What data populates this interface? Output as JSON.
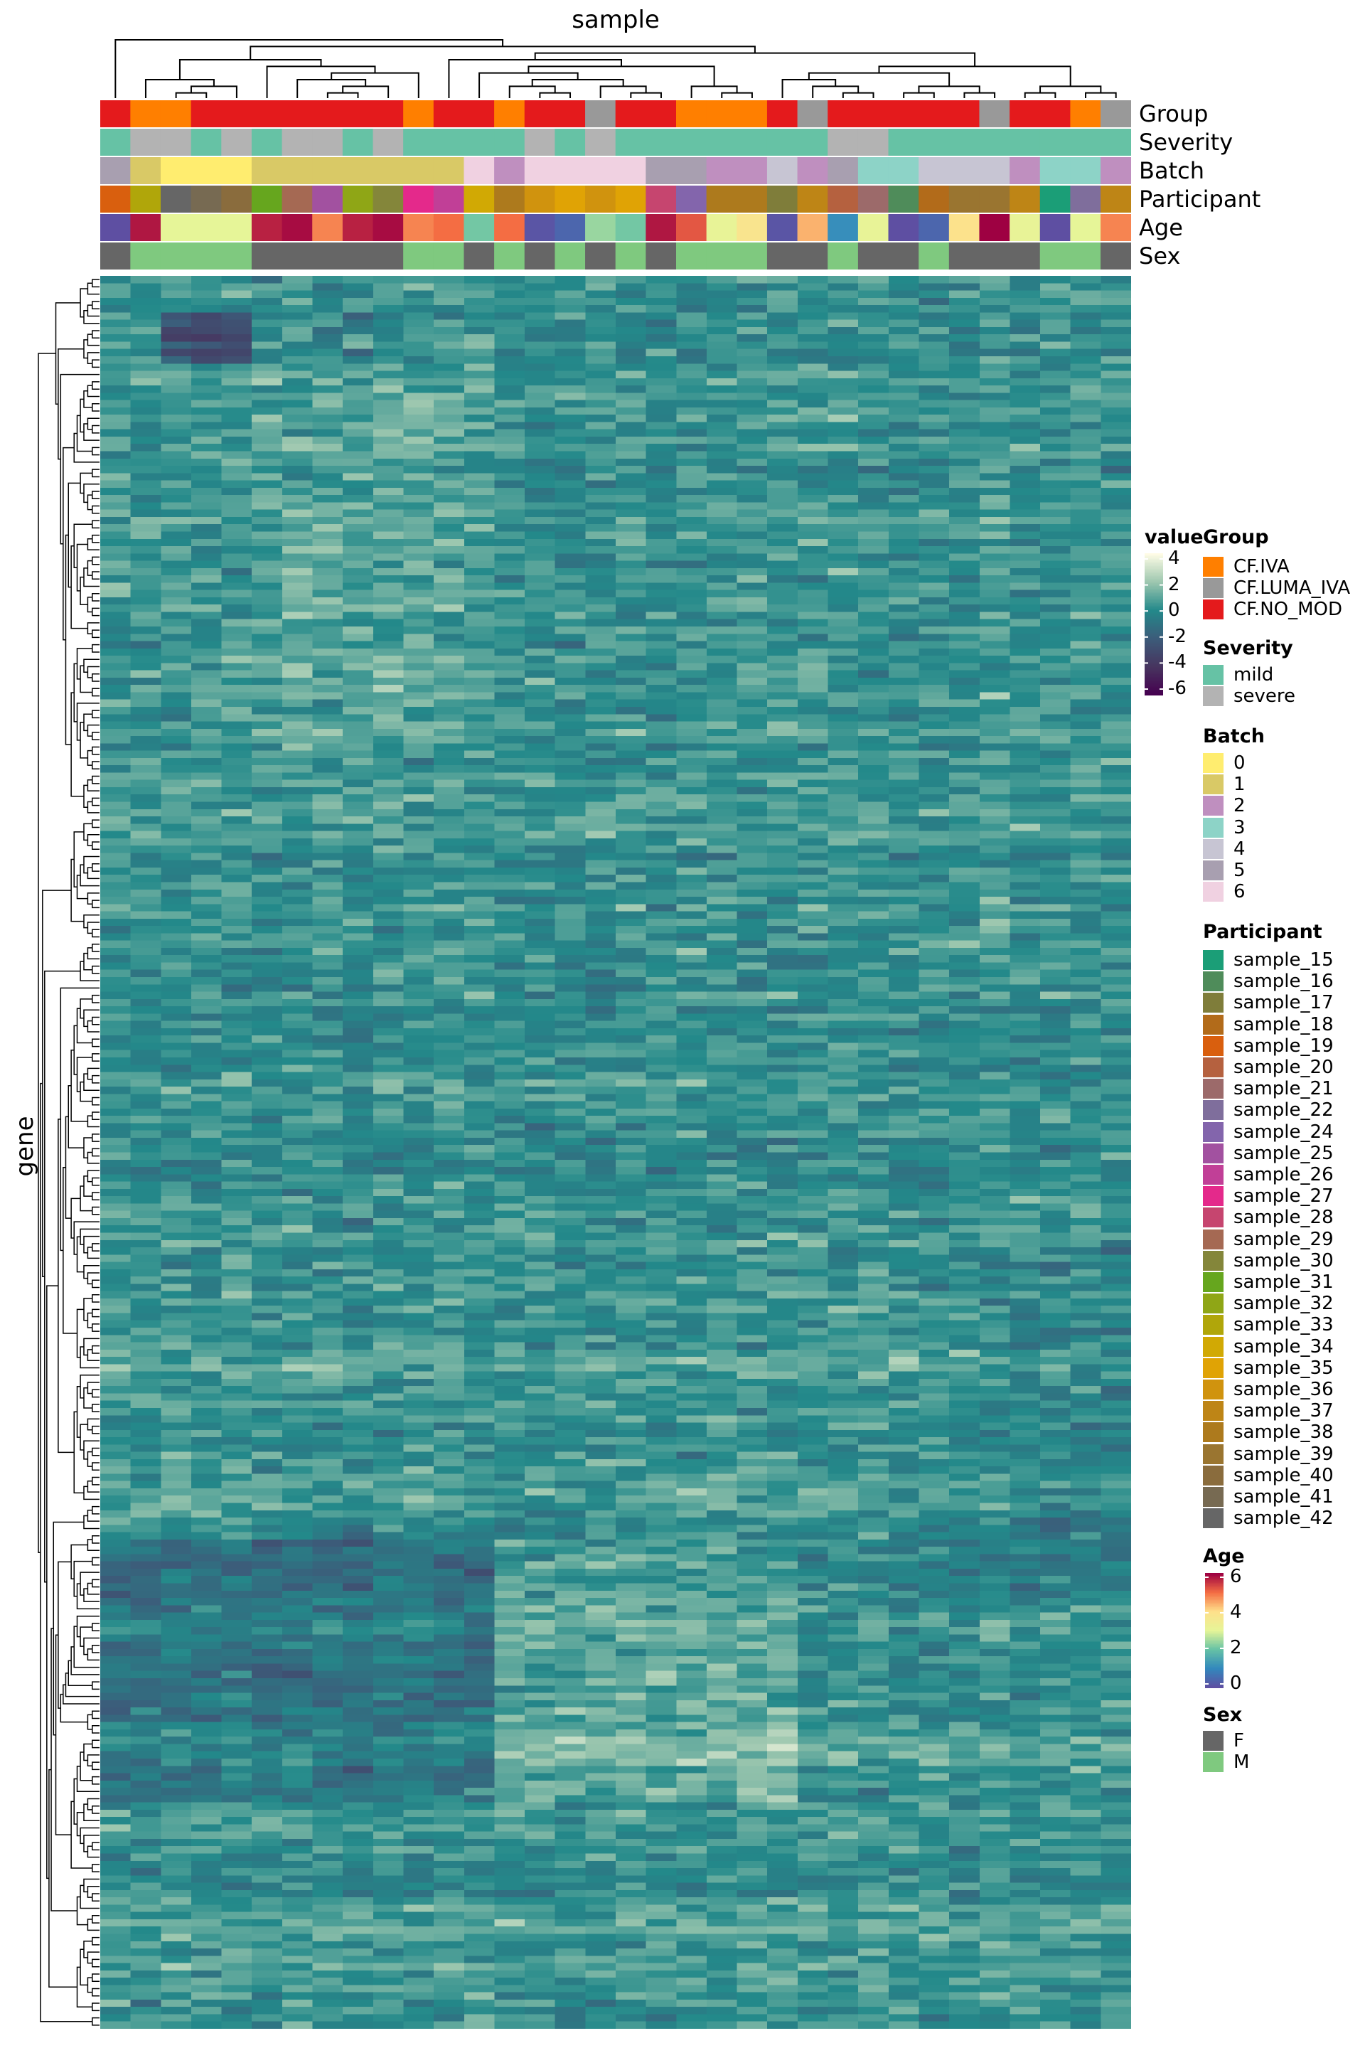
{
  "chart_data": {
    "type": "heatmap",
    "title": "sample",
    "ylabel": "gene",
    "value_scale": {
      "title": "value",
      "range": [
        -6,
        4
      ],
      "ticks": [
        "4",
        "2",
        "0",
        "-2",
        "-4",
        "-6"
      ],
      "colors": [
        "#45004f",
        "#47355f",
        "#3c5c7a",
        "#23898a",
        "#9dc7af",
        "#fffce6"
      ]
    },
    "annotation_rows": [
      "Group",
      "Severity",
      "Batch",
      "Participant",
      "Age",
      "Sex"
    ],
    "columns": {
      "Group": [
        "CF.NO_MOD",
        "CF.IVA",
        "CF.IVA",
        "CF.NO_MOD",
        "CF.NO_MOD",
        "CF.NO_MOD",
        "CF.NO_MOD",
        "CF.NO_MOD",
        "CF.NO_MOD",
        "CF.NO_MOD",
        "CF.IVA",
        "CF.NO_MOD",
        "CF.NO_MOD",
        "CF.IVA",
        "CF.NO_MOD",
        "CF.NO_MOD",
        "CF.LUMA_IVA",
        "CF.NO_MOD",
        "CF.NO_MOD",
        "CF.IVA",
        "CF.IVA",
        "CF.IVA",
        "CF.NO_MOD",
        "CF.LUMA_IVA",
        "CF.NO_MOD",
        "CF.NO_MOD",
        "CF.NO_MOD",
        "CF.NO_MOD",
        "CF.NO_MOD",
        "CF.LUMA_IVA",
        "CF.NO_MOD",
        "CF.NO_MOD",
        "CF.IVA",
        "CF.LUMA_IVA"
      ],
      "Severity": [
        "mild",
        "severe",
        "severe",
        "mild",
        "severe",
        "mild",
        "severe",
        "severe",
        "mild",
        "severe",
        "mild",
        "mild",
        "mild",
        "mild",
        "severe",
        "mild",
        "severe",
        "mild",
        "mild",
        "mild",
        "mild",
        "mild",
        "mild",
        "mild",
        "severe",
        "severe",
        "mild",
        "mild",
        "mild",
        "mild",
        "mild",
        "mild",
        "mild",
        "mild"
      ],
      "Batch": [
        "5",
        "1",
        "0",
        "0",
        "0",
        "1",
        "1",
        "1",
        "1",
        "1",
        "1",
        "1",
        "6",
        "2",
        "6",
        "6",
        "6",
        "6",
        "5",
        "5",
        "2",
        "2",
        "4",
        "2",
        "5",
        "3",
        "3",
        "4",
        "4",
        "4",
        "2",
        "3",
        "3",
        "2"
      ],
      "Participant": [
        "sample_19",
        "sample_33",
        "sample_42",
        "sample_41",
        "sample_40",
        "sample_31",
        "sample_29",
        "sample_25",
        "sample_32",
        "sample_30",
        "sample_27",
        "sample_26",
        "sample_34",
        "sample_38",
        "sample_36",
        "sample_35",
        "sample_36",
        "sample_35",
        "sample_28",
        "sample_24",
        "sample_38",
        "sample_38",
        "sample_17",
        "sample_37",
        "sample_20",
        "sample_21",
        "sample_16",
        "sample_18",
        "sample_39",
        "sample_39",
        "sample_37",
        "sample_15",
        "sample_22",
        "sample_37"
      ],
      "Age": [
        0,
        5.8,
        3,
        3,
        3,
        5.7,
        5.9,
        4.8,
        5.7,
        5.9,
        4.8,
        5,
        2.1,
        5,
        0.1,
        0.4,
        2.4,
        2.1,
        5.8,
        5.2,
        3.1,
        3.8,
        0.1,
        4.4,
        1.1,
        3.1,
        0,
        0.4,
        3.9,
        6,
        3.1,
        0,
        3,
        4.8
      ],
      "Sex": [
        "F",
        "M",
        "M",
        "M",
        "M",
        "F",
        "F",
        "F",
        "F",
        "F",
        "M",
        "M",
        "F",
        "M",
        "F",
        "M",
        "F",
        "M",
        "F",
        "M",
        "M",
        "M",
        "F",
        "F",
        "M",
        "F",
        "F",
        "M",
        "F",
        "F",
        "F",
        "M",
        "M",
        "F"
      ]
    }
  },
  "legends": {
    "Group": {
      "title": "Group",
      "items": [
        {
          "label": "CF.IVA",
          "color": "#ff7f00"
        },
        {
          "label": "CF.LUMA_IVA",
          "color": "#999999"
        },
        {
          "label": "CF.NO_MOD",
          "color": "#e41a1c"
        }
      ]
    },
    "Severity": {
      "title": "Severity",
      "items": [
        {
          "label": "mild",
          "color": "#66c2a5"
        },
        {
          "label": "severe",
          "color": "#b3b3b3"
        }
      ]
    },
    "Batch": {
      "title": "Batch",
      "items": [
        {
          "label": "0",
          "color": "#ffed6f"
        },
        {
          "label": "1",
          "color": "#d9c966"
        },
        {
          "label": "2",
          "color": "#bf8fbf"
        },
        {
          "label": "3",
          "color": "#8dd3c7"
        },
        {
          "label": "4",
          "color": "#c7c5d3"
        },
        {
          "label": "5",
          "color": "#a89fb0"
        },
        {
          "label": "6",
          "color": "#f0d1e1"
        }
      ]
    },
    "Participant": {
      "title": "Participant",
      "items": [
        {
          "label": "sample_15",
          "color": "#1b9e77"
        },
        {
          "label": "sample_16",
          "color": "#4f8c5a"
        },
        {
          "label": "sample_17",
          "color": "#7f7d3a"
        },
        {
          "label": "sample_18",
          "color": "#b26b1a"
        },
        {
          "label": "sample_19",
          "color": "#d95f0e"
        },
        {
          "label": "sample_20",
          "color": "#b5613f"
        },
        {
          "label": "sample_21",
          "color": "#9c6a6a"
        },
        {
          "label": "sample_22",
          "color": "#7f6e9c"
        },
        {
          "label": "sample_24",
          "color": "#8365ac"
        },
        {
          "label": "sample_25",
          "color": "#a251a0"
        },
        {
          "label": "sample_26",
          "color": "#c13f97"
        },
        {
          "label": "sample_27",
          "color": "#e4298b"
        },
        {
          "label": "sample_28",
          "color": "#c6456f"
        },
        {
          "label": "sample_29",
          "color": "#a56953"
        },
        {
          "label": "sample_30",
          "color": "#84863a"
        },
        {
          "label": "sample_31",
          "color": "#66a61e"
        },
        {
          "label": "sample_32",
          "color": "#8fa616"
        },
        {
          "label": "sample_33",
          "color": "#b0a60a"
        },
        {
          "label": "sample_34",
          "color": "#d1a904"
        },
        {
          "label": "sample_35",
          "color": "#e0a305"
        },
        {
          "label": "sample_36",
          "color": "#d0930e"
        },
        {
          "label": "sample_37",
          "color": "#be8516"
        },
        {
          "label": "sample_38",
          "color": "#ad7a1d"
        },
        {
          "label": "sample_39",
          "color": "#9a7530"
        },
        {
          "label": "sample_40",
          "color": "#8a6c3d"
        },
        {
          "label": "sample_41",
          "color": "#776a52"
        },
        {
          "label": "sample_42",
          "color": "#666666"
        }
      ]
    },
    "Age": {
      "title": "Age",
      "range": [
        0,
        6
      ],
      "ticks": [
        "6",
        "4",
        "2",
        "0"
      ],
      "colors": [
        "#5e4fa2",
        "#3288bd",
        "#66c2a5",
        "#e6f598",
        "#fee08b",
        "#f46d43",
        "#9e0142"
      ]
    },
    "Sex": {
      "title": "Sex",
      "items": [
        {
          "label": "F",
          "color": "#666666"
        },
        {
          "label": "M",
          "color": "#7fc97f"
        }
      ]
    }
  }
}
